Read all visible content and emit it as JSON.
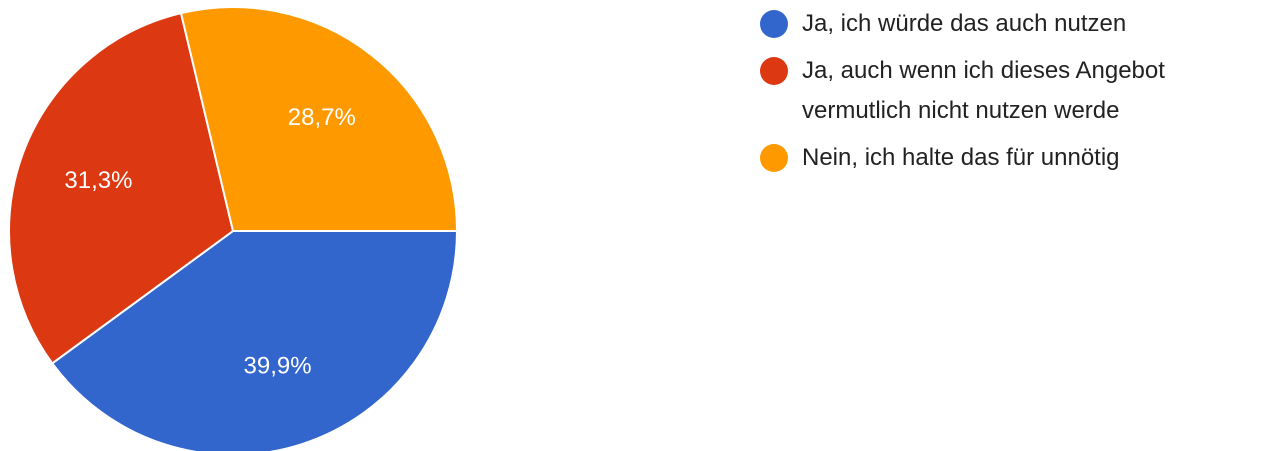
{
  "chart_data": {
    "type": "pie",
    "categories": [
      "Ja, ich würde das auch nutzen",
      "Ja, auch wenn ich dieses Angebot vermutlich nicht nutzen werde",
      "Nein, ich halte das für unnötig"
    ],
    "values": [
      39.9,
      31.3,
      28.7
    ],
    "value_labels": [
      "39,9%",
      "31,3%",
      "28,7%"
    ],
    "colors": [
      "#3366cc",
      "#dc3912",
      "#ff9900"
    ]
  }
}
